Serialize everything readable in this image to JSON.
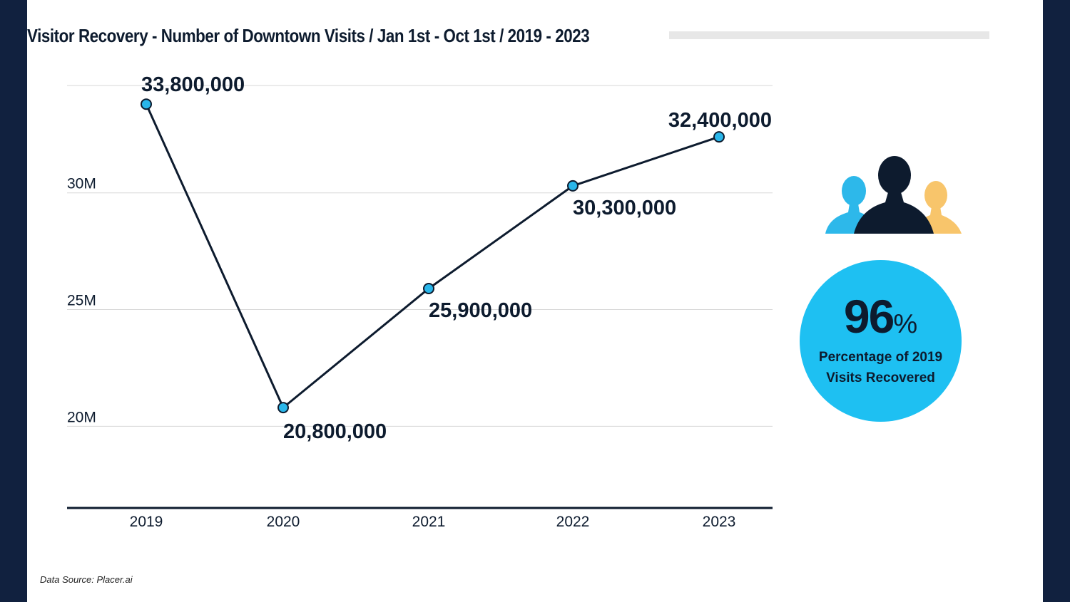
{
  "title": "Visitor Recovery - Number of Downtown Visits / Jan 1st - Oct 1st / 2019 - 2023",
  "source": "Data Source: Placer.ai",
  "stat": {
    "value": "96",
    "unit": "%",
    "caption_line1": "Percentage of 2019",
    "caption_line2": "Visits Recovered"
  },
  "icons": {
    "people": "people-group-icon"
  },
  "colors": {
    "background": "#11213f",
    "line": "#0d1b2e",
    "marker": "#29b6ea",
    "accent": "#1ec0f2",
    "person_left": "#2db8ea",
    "person_right": "#f8c56b",
    "person_center": "#0d1b2e"
  },
  "chart_data": {
    "type": "line",
    "categories": [
      "2019",
      "2020",
      "2021",
      "2022",
      "2023"
    ],
    "values": [
      33800000,
      20800000,
      25900000,
      30300000,
      32400000
    ],
    "data_labels": [
      "33,800,000",
      "20,800,000",
      "25,900,000",
      "30,300,000",
      "32,400,000"
    ],
    "y_ticks": [
      20000000,
      25000000,
      30000000
    ],
    "y_tick_labels": [
      "20M",
      "25M",
      "30M"
    ],
    "ylim": [
      16500000,
      34600000
    ],
    "grid": true
  }
}
